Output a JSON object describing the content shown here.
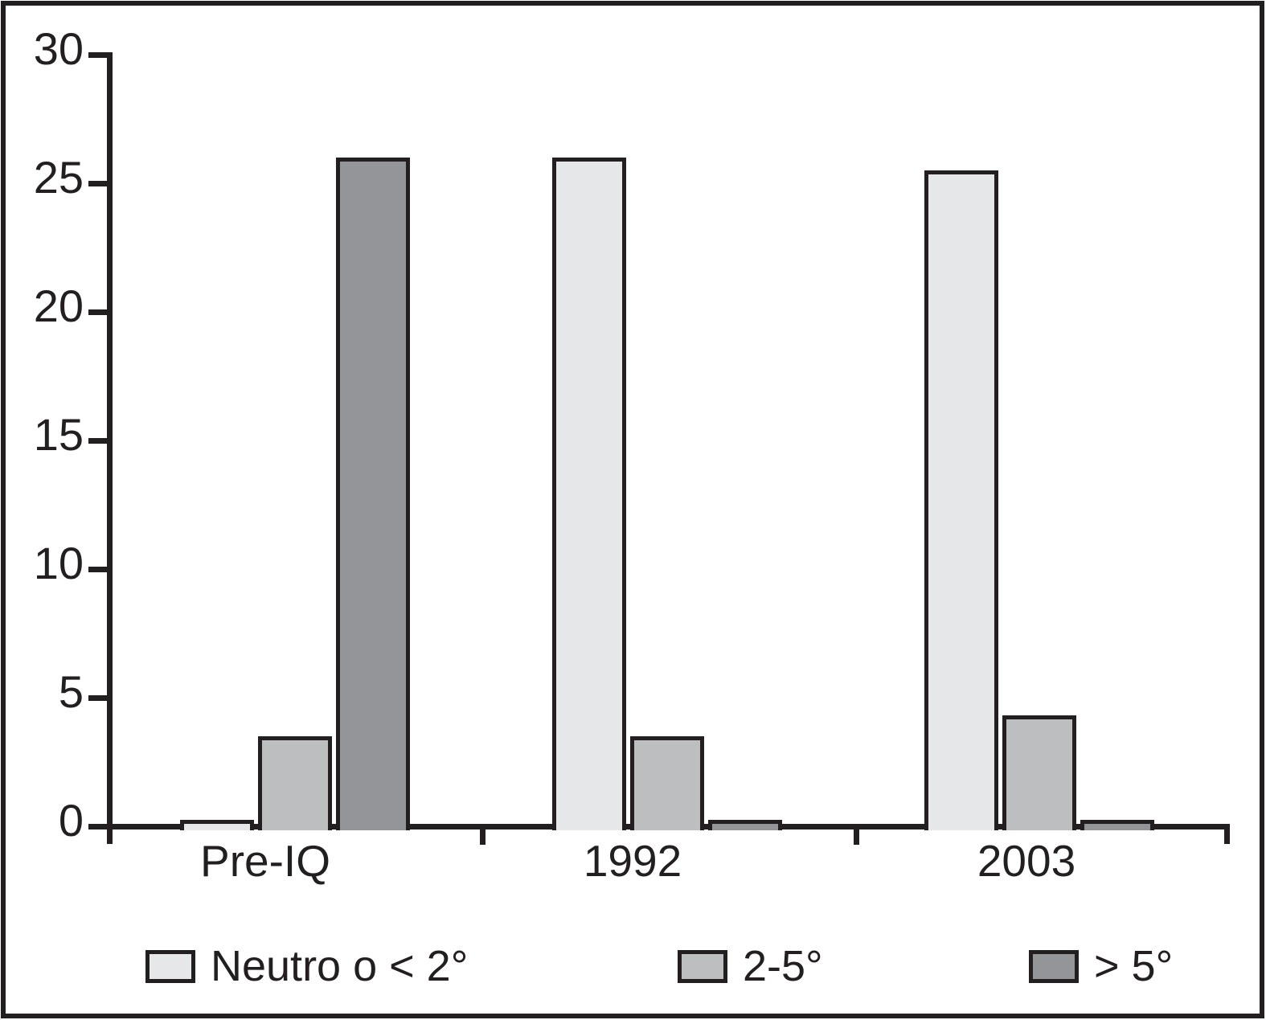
{
  "chart_data": {
    "type": "bar",
    "title": "",
    "xlabel": "",
    "ylabel": "",
    "categories": [
      "Pre-IQ",
      "1992",
      "2003"
    ],
    "series": [
      {
        "name": "Neutro o < 2°",
        "color": "#e6e7e8",
        "values": [
          0.25,
          26,
          25.5
        ]
      },
      {
        "name": "2-5°",
        "color": "#bcbec0",
        "values": [
          3.5,
          3.5,
          4.3
        ]
      },
      {
        "name": "> 5°",
        "color": "#939598",
        "values": [
          26,
          0.25,
          0.25
        ]
      }
    ],
    "ylim": [
      0,
      30
    ],
    "yticks": [
      0,
      5,
      10,
      15,
      20,
      25,
      30
    ],
    "grid": false,
    "legend_position": "bottom",
    "axis_color": "#231f20",
    "background_color": "#ffffff"
  }
}
